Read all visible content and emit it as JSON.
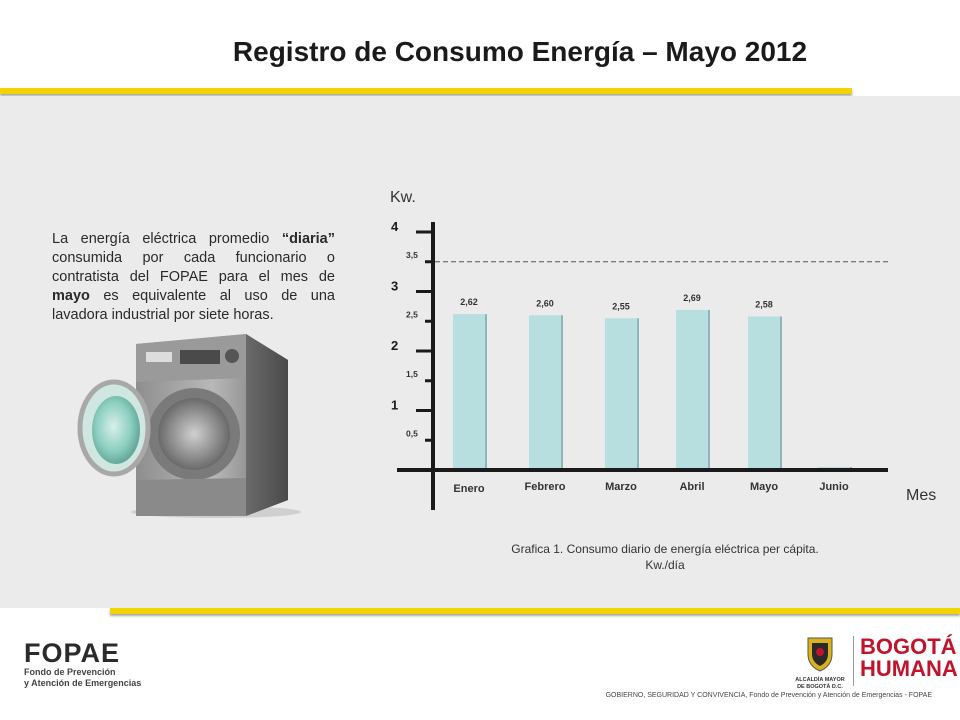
{
  "title": "Registro de Consumo Energía – Mayo 2012",
  "description": {
    "part1": "La energía eléctrica promedio ",
    "bold1": "“diaria”",
    "part2": " consumida por cada funcionario o contratista del FOPAE para el mes de ",
    "bold2": "mayo",
    "part3": " es equivalente al uso de una lavadora industrial por  siete horas."
  },
  "chart_data": {
    "type": "bar",
    "ylabel": "Kw.",
    "xlabel": "Mes",
    "categories": [
      "Enero",
      "Febrero",
      "Marzo",
      "Abril",
      "Mayo",
      "Junio"
    ],
    "values": [
      2.62,
      2.6,
      2.55,
      2.69,
      2.58,
      0.05
    ],
    "data_labels": [
      "2,62",
      "2,60",
      "2,55",
      "2,69",
      "2,58",
      ""
    ],
    "ylim": [
      0,
      4
    ],
    "major_ticks": [
      {
        "value": 1,
        "label": "1"
      },
      {
        "value": 2,
        "label": "2"
      },
      {
        "value": 3,
        "label": "3"
      },
      {
        "value": 4,
        "label": "4"
      }
    ],
    "minor_ticks": [
      {
        "value": 0.5,
        "label": "0,5"
      },
      {
        "value": 1.5,
        "label": "1,5"
      },
      {
        "value": 2.5,
        "label": "2,5"
      },
      {
        "value": 3.5,
        "label": "3,5"
      }
    ],
    "reference_line": 3.5,
    "bar_color": "#b8dfe0",
    "grid": false
  },
  "caption": {
    "line1": "Grafica 1. Consumo diario de energía eléctrica per cápita.",
    "line2": "Kw./día"
  },
  "footer": {
    "fopae_word": "FOPAE",
    "fopae_sub1": "Fondo de Prevención",
    "fopae_sub2": "y Atención de Emergencias",
    "alcaldia1": "ALCALDÍA MAYOR",
    "alcaldia2": "DE BOGOTÁ D.C.",
    "bogota1": "BOGOTÁ",
    "bogota2": "HUMANA",
    "text": "GOBIERNO, SEGURIDAD Y CONVIVENCIA, Fondo de Prevención  y Atención de Emergencias - FOPAE"
  },
  "colors": {
    "accent_yellow": "#f2d400",
    "panel_bg": "#ebebeb",
    "brand_red": "#c0142c"
  }
}
